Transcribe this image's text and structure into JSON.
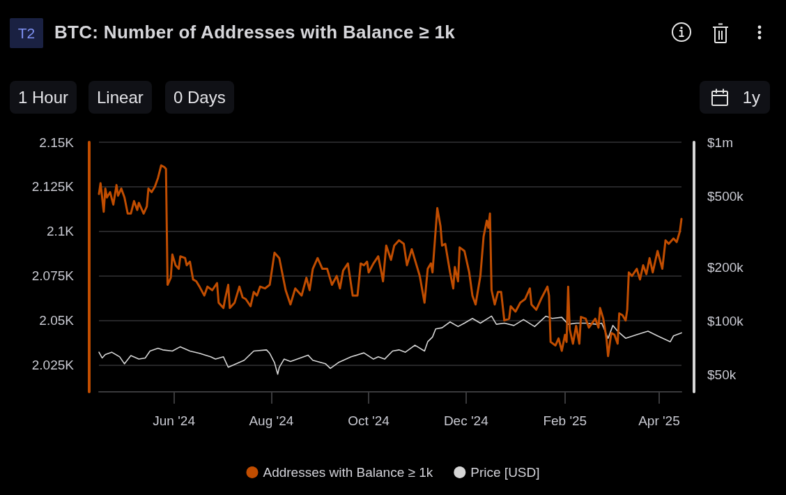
{
  "chart_data": {
    "type": "line",
    "title": "BTC: Number of Addresses with Balance ≥ 1k",
    "annotations": [
      "T2",
      "1 Hour",
      "Linear",
      "0 Days",
      "1y"
    ],
    "xlim": [
      "2024-04-15",
      "2025-04-15"
    ],
    "xticks": [
      {
        "value": "2024-06-01",
        "label": "Jun '24"
      },
      {
        "value": "2024-08-01",
        "label": "Aug '24"
      },
      {
        "value": "2024-10-01",
        "label": "Oct '24"
      },
      {
        "value": "2024-12-01",
        "label": "Dec '24"
      },
      {
        "value": "2025-02-01",
        "label": "Feb '25"
      },
      {
        "value": "2025-04-01",
        "label": "Apr '25"
      }
    ],
    "ylim": [
      2010,
      2150
    ],
    "yticks": [
      {
        "value": 2025,
        "label": "2.025K"
      },
      {
        "value": 2050,
        "label": "2.05K"
      },
      {
        "value": 2075,
        "label": "2.075K"
      },
      {
        "value": 2100,
        "label": "2.1K"
      },
      {
        "value": 2125,
        "label": "2.125K"
      },
      {
        "value": 2150,
        "label": "2.15K"
      }
    ],
    "y2lim": [
      40000,
      1000000
    ],
    "y2ticks": [
      {
        "value": 50000,
        "label": "$50k"
      },
      {
        "value": 100000,
        "label": "$100k"
      },
      {
        "value": 200000,
        "label": "$200k"
      },
      {
        "value": 500000,
        "label": "$500k"
      },
      {
        "value": 1000000,
        "label": "$1m"
      }
    ],
    "log": "y2",
    "grid": "y",
    "legend": "bottom",
    "marker": "none",
    "series": [
      {
        "name": "Addresses with Balance ≥ 1k",
        "color": "#c14d00",
        "x": [
          "2024-04-15",
          "2024-04-16",
          "2024-04-18",
          "2024-04-19",
          "2024-04-20",
          "2024-04-22",
          "2024-04-24",
          "2024-04-26",
          "2024-04-27",
          "2024-04-29",
          "2024-05-01",
          "2024-05-03",
          "2024-05-05",
          "2024-05-07",
          "2024-05-09",
          "2024-05-10",
          "2024-05-13",
          "2024-05-15",
          "2024-05-16",
          "2024-05-18",
          "2024-05-20",
          "2024-05-22",
          "2024-05-24",
          "2024-05-26",
          "2024-05-27",
          "2024-05-28",
          "2024-05-30",
          "2024-05-31",
          "2024-06-02",
          "2024-06-04",
          "2024-06-05",
          "2024-06-08",
          "2024-06-09",
          "2024-06-11",
          "2024-06-13",
          "2024-06-15",
          "2024-06-17",
          "2024-06-20",
          "2024-06-22",
          "2024-06-25",
          "2024-06-28",
          "2024-06-29",
          "2024-07-02",
          "2024-07-03",
          "2024-07-05",
          "2024-07-06",
          "2024-07-09",
          "2024-07-12",
          "2024-07-14",
          "2024-07-16",
          "2024-07-19",
          "2024-07-21",
          "2024-07-23",
          "2024-07-25",
          "2024-07-28",
          "2024-07-31",
          "2024-08-03",
          "2024-08-06",
          "2024-08-10",
          "2024-08-13",
          "2024-08-16",
          "2024-08-20",
          "2024-08-23",
          "2024-08-25",
          "2024-08-27",
          "2024-08-30",
          "2024-09-02",
          "2024-09-05",
          "2024-09-08",
          "2024-09-11",
          "2024-09-13",
          "2024-09-15",
          "2024-09-18",
          "2024-09-21",
          "2024-09-24",
          "2024-09-26",
          "2024-09-28",
          "2024-09-30",
          "2024-10-01",
          "2024-10-04",
          "2024-10-07",
          "2024-10-09",
          "2024-10-10",
          "2024-10-12",
          "2024-10-15",
          "2024-10-17",
          "2024-10-20",
          "2024-10-23",
          "2024-10-25",
          "2024-10-28",
          "2024-10-31",
          "2024-11-02",
          "2024-11-05",
          "2024-11-07",
          "2024-11-09",
          "2024-11-10",
          "2024-11-13",
          "2024-11-15",
          "2024-11-16",
          "2024-11-18",
          "2024-11-21",
          "2024-11-23",
          "2024-11-24",
          "2024-11-26",
          "2024-11-27",
          "2024-11-30",
          "2024-12-03",
          "2024-12-05",
          "2024-12-07",
          "2024-12-10",
          "2024-12-12",
          "2024-12-14",
          "2024-12-15",
          "2024-12-16",
          "2024-12-17",
          "2024-12-19",
          "2024-12-21",
          "2024-12-23",
          "2024-12-25",
          "2024-12-28",
          "2024-12-29",
          "2025-01-01",
          "2025-01-04",
          "2025-01-07",
          "2025-01-10",
          "2025-01-11",
          "2025-01-14",
          "2025-01-17",
          "2025-01-21",
          "2025-01-22",
          "2025-01-23",
          "2025-01-26",
          "2025-01-28",
          "2025-01-30",
          "2025-02-01",
          "2025-02-02",
          "2025-02-03",
          "2025-02-04",
          "2025-02-06",
          "2025-02-08",
          "2025-02-10",
          "2025-02-11",
          "2025-02-14",
          "2025-02-16",
          "2025-02-20",
          "2025-02-22",
          "2025-02-23",
          "2025-02-25",
          "2025-02-27",
          "2025-02-28",
          "2025-03-02",
          "2025-03-04",
          "2025-03-06",
          "2025-03-07",
          "2025-03-09",
          "2025-03-11",
          "2025-03-12",
          "2025-03-13",
          "2025-03-15",
          "2025-03-18",
          "2025-03-20",
          "2025-03-22",
          "2025-03-24",
          "2025-03-26",
          "2025-03-28",
          "2025-03-31",
          "2025-04-03",
          "2025-04-05",
          "2025-04-07",
          "2025-04-10",
          "2025-04-12",
          "2025-04-14",
          "2025-04-15"
        ],
        "values": [
          2121,
          2127,
          2111,
          2124,
          2119,
          2122,
          2115,
          2126,
          2120,
          2124,
          2119,
          2110,
          2110,
          2117,
          2112,
          2116,
          2110,
          2114,
          2124,
          2122,
          2125,
          2130,
          2137,
          2136,
          2135,
          2070,
          2074,
          2087,
          2081,
          2079,
          2086,
          2085,
          2081,
          2083,
          2073,
          2072,
          2069,
          2064,
          2069,
          2067,
          2071,
          2060,
          2057,
          2062,
          2070,
          2057,
          2060,
          2069,
          2063,
          2062,
          2058,
          2066,
          2064,
          2069,
          2068,
          2070,
          2088,
          2085,
          2067,
          2059,
          2068,
          2064,
          2074,
          2067,
          2079,
          2085,
          2079,
          2079,
          2070,
          2075,
          2068,
          2078,
          2082,
          2064,
          2064,
          2082,
          2081,
          2083,
          2077,
          2082,
          2086,
          2077,
          2072,
          2092,
          2084,
          2092,
          2095,
          2093,
          2081,
          2090,
          2081,
          2075,
          2060,
          2079,
          2082,
          2077,
          2113,
          2103,
          2092,
          2093,
          2077,
          2068,
          2080,
          2072,
          2091,
          2089,
          2077,
          2064,
          2059,
          2075,
          2097,
          2106,
          2102,
          2110,
          2067,
          2059,
          2066,
          2066,
          2050,
          2051,
          2058,
          2055,
          2060,
          2062,
          2068,
          2059,
          2056,
          2062,
          2069,
          2064,
          2038,
          2036,
          2040,
          2033,
          2042,
          2038,
          2069,
          2045,
          2037,
          2047,
          2037,
          2052,
          2051,
          2046,
          2051,
          2046,
          2057,
          2051,
          2040,
          2030,
          2043,
          2042,
          2037,
          2054,
          2053,
          2050,
          2056,
          2077,
          2075,
          2079,
          2073,
          2081,
          2076,
          2085,
          2077,
          2089,
          2079,
          2095,
          2093,
          2096,
          2094,
          2100,
          2107
        ]
      },
      {
        "name": "Price [USD]",
        "color": "#d6d6d6",
        "axis": "y2",
        "x": [
          "2024-04-15",
          "2024-04-17",
          "2024-04-19",
          "2024-04-23",
          "2024-04-28",
          "2024-05-01",
          "2024-05-05",
          "2024-05-10",
          "2024-05-14",
          "2024-05-17",
          "2024-05-22",
          "2024-05-25",
          "2024-05-31",
          "2024-06-05",
          "2024-06-11",
          "2024-06-17",
          "2024-06-24",
          "2024-06-27",
          "2024-07-02",
          "2024-07-05",
          "2024-07-10",
          "2024-07-15",
          "2024-07-21",
          "2024-07-29",
          "2024-07-31",
          "2024-08-03",
          "2024-08-05",
          "2024-08-06",
          "2024-08-09",
          "2024-08-13",
          "2024-08-24",
          "2024-08-27",
          "2024-09-04",
          "2024-09-07",
          "2024-09-12",
          "2024-09-20",
          "2024-09-28",
          "2024-10-04",
          "2024-10-07",
          "2024-10-11",
          "2024-10-16",
          "2024-10-20",
          "2024-10-24",
          "2024-10-30",
          "2024-11-05",
          "2024-11-07",
          "2024-11-10",
          "2024-11-12",
          "2024-11-16",
          "2024-11-21",
          "2024-11-26",
          "2024-11-30",
          "2024-12-05",
          "2024-12-10",
          "2024-12-17",
          "2024-12-20",
          "2024-12-25",
          "2024-12-31",
          "2025-01-06",
          "2025-01-13",
          "2025-01-20",
          "2025-01-24",
          "2025-01-30",
          "2025-02-03",
          "2025-02-08",
          "2025-02-14",
          "2025-02-21",
          "2025-02-24",
          "2025-02-28",
          "2025-03-03",
          "2025-03-06",
          "2025-03-11",
          "2025-03-18",
          "2025-03-25",
          "2025-03-31",
          "2025-04-08",
          "2025-04-10",
          "2025-04-15"
        ],
        "values": [
          66700,
          61900,
          64700,
          66700,
          62800,
          57400,
          63800,
          61000,
          61900,
          67700,
          70200,
          68700,
          67700,
          71500,
          67700,
          65700,
          62800,
          61000,
          62800,
          54900,
          57400,
          60100,
          67700,
          68700,
          65700,
          58300,
          50200,
          54900,
          61000,
          59200,
          64200,
          60100,
          57400,
          54100,
          58300,
          62800,
          66100,
          61000,
          62800,
          61000,
          67700,
          68700,
          66700,
          73000,
          67700,
          76300,
          81100,
          90000,
          91400,
          98500,
          92800,
          97000,
          103000,
          97000,
          106200,
          95600,
          97000,
          94100,
          101500,
          92800,
          106000,
          103000,
          104600,
          95600,
          97000,
          97000,
          95600,
          97000,
          79800,
          94100,
          87400,
          79800,
          83600,
          87400,
          82300,
          76300,
          82300,
          85600
        ]
      }
    ]
  }
}
